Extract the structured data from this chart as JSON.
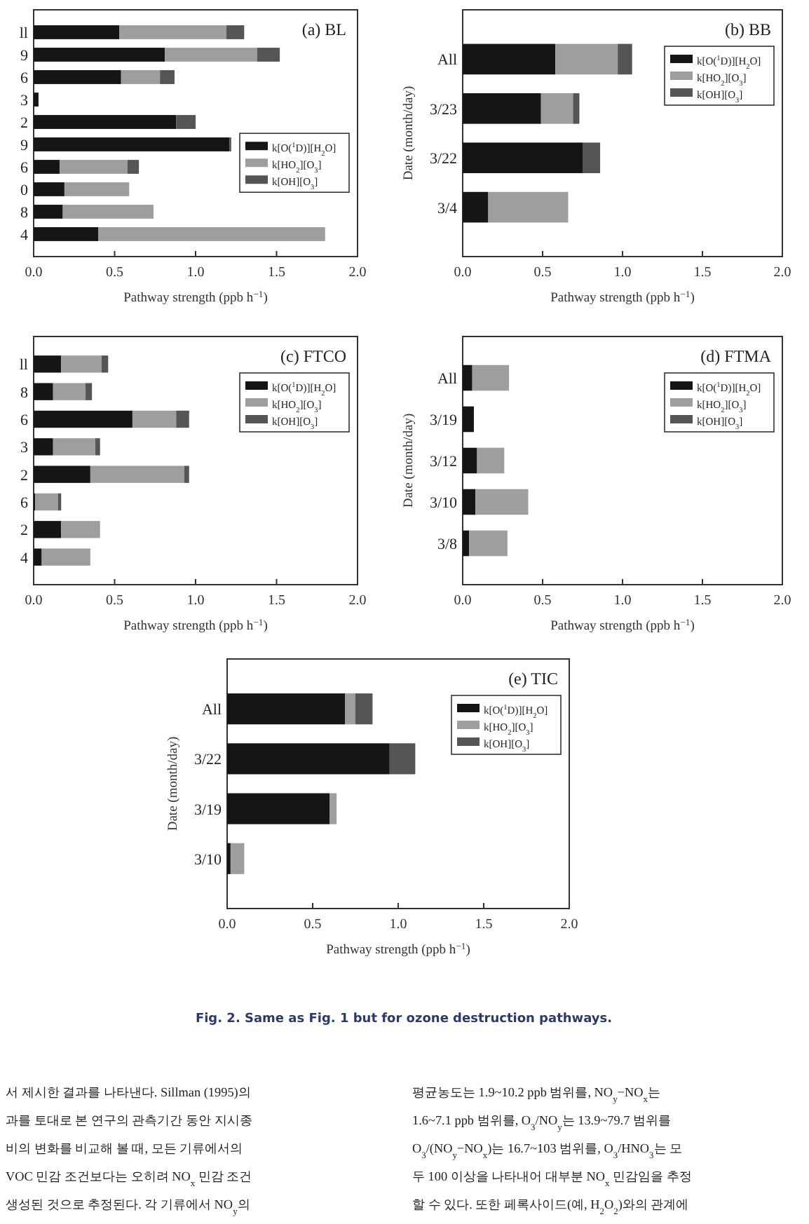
{
  "chart_data": [
    {
      "type": "bar",
      "orientation": "horizontal",
      "stacked": true,
      "title": "(a) BL",
      "xlabel": "Pathway strength (ppb h$^{−1}$)",
      "categories": [
        "ll",
        "9",
        "6",
        "3",
        "2",
        "9",
        "6",
        "0",
        "8",
        "4"
      ],
      "xlim": [
        0,
        2
      ],
      "xticks": [
        {
          "value": 0,
          "label": "0.0"
        },
        {
          "value": 0.5,
          "label": "0.5"
        },
        {
          "value": 1,
          "label": "1.0"
        },
        {
          "value": 1.5,
          "label": "1.5"
        },
        {
          "value": 2,
          "label": "2.0"
        }
      ],
      "legend": "right",
      "series": [
        {
          "name": "k[O($^{1}$D)][H$_{2}$O]",
          "color": "#151515",
          "values": [
            0.53,
            0.81,
            0.54,
            0.03,
            0.88,
            1.21,
            0.16,
            0.19,
            0.18,
            0.4
          ]
        },
        {
          "name": "k[HO$_{2}$][O$_{3}$]",
          "color": "#9e9e9e",
          "values": [
            0.66,
            0.57,
            0.24,
            0,
            0,
            0,
            0.42,
            0.4,
            0.56,
            1.4
          ]
        },
        {
          "name": "k[OH][O$_{3}$]",
          "color": "#555555",
          "values": [
            0.11,
            0.14,
            0.09,
            0,
            0.12,
            0.01,
            0.07,
            0,
            0,
            0
          ]
        }
      ]
    },
    {
      "type": "bar",
      "orientation": "horizontal",
      "stacked": true,
      "title": "(b) BB",
      "xlabel": "Pathway strength (ppb h$^{−1}$)",
      "ylabel": "Date (month/day)",
      "categories": [
        "All",
        "3/23",
        "3/22",
        "3/4"
      ],
      "xlim": [
        0,
        2
      ],
      "xticks": [
        {
          "value": 0,
          "label": "0.0"
        },
        {
          "value": 0.5,
          "label": "0.5"
        },
        {
          "value": 1,
          "label": "1.0"
        },
        {
          "value": 1.5,
          "label": "1.5"
        },
        {
          "value": 2,
          "label": "2.0"
        }
      ],
      "legend": "top right",
      "series": [
        {
          "name": "k[O($^{1}$D)][H$_{2}$O]",
          "color": "#151515",
          "values": [
            0.58,
            0.49,
            0.75,
            0.16
          ]
        },
        {
          "name": "k[HO$_{2}$][O$_{3}$]",
          "color": "#9e9e9e",
          "values": [
            0.39,
            0.2,
            0,
            0.5
          ]
        },
        {
          "name": "k[OH][O$_{3}$]",
          "color": "#555555",
          "values": [
            0.09,
            0.04,
            0.11,
            0
          ]
        }
      ]
    },
    {
      "type": "bar",
      "orientation": "horizontal",
      "stacked": true,
      "title": "(c) FTCO",
      "xlabel": "Pathway strength (ppb h$^{−1}$)",
      "categories": [
        "ll",
        "8",
        "6",
        "3",
        "2",
        "6",
        "2",
        "4"
      ],
      "xlim": [
        0,
        2
      ],
      "xticks": [
        {
          "value": 0,
          "label": "0.0"
        },
        {
          "value": 0.5,
          "label": "0.5"
        },
        {
          "value": 1,
          "label": "1.0"
        },
        {
          "value": 1.5,
          "label": "1.5"
        },
        {
          "value": 2,
          "label": "2.0"
        }
      ],
      "legend": "top right",
      "series": [
        {
          "name": "k[O($^{1}$D)][H$_{2}$O]",
          "color": "#151515",
          "values": [
            0.17,
            0.12,
            0.61,
            0.12,
            0.35,
            0.01,
            0.17,
            0.05
          ]
        },
        {
          "name": "k[HO$_{2}$][O$_{3}$]",
          "color": "#9e9e9e",
          "values": [
            0.25,
            0.2,
            0.27,
            0.26,
            0.58,
            0.14,
            0.24,
            0.3
          ]
        },
        {
          "name": "k[OH][O$_{3}$]",
          "color": "#555555",
          "values": [
            0.04,
            0.04,
            0.08,
            0.03,
            0.03,
            0.02,
            0,
            0
          ]
        }
      ]
    },
    {
      "type": "bar",
      "orientation": "horizontal",
      "stacked": true,
      "title": "(d) FTMA",
      "xlabel": "Pathway strength (ppb h$^{−1}$)",
      "ylabel": "Date (month/day)",
      "categories": [
        "All",
        "3/19",
        "3/12",
        "3/10",
        "3/8"
      ],
      "xlim": [
        0,
        2
      ],
      "xticks": [
        {
          "value": 0,
          "label": "0.0"
        },
        {
          "value": 0.5,
          "label": "0.5"
        },
        {
          "value": 1,
          "label": "1.0"
        },
        {
          "value": 1.5,
          "label": "1.5"
        },
        {
          "value": 2,
          "label": "2.0"
        }
      ],
      "legend": "top right",
      "series": [
        {
          "name": "k[O($^{1}$D)][H$_{2}$O]",
          "color": "#151515",
          "values": [
            0.06,
            0.07,
            0.09,
            0.08,
            0.04
          ]
        },
        {
          "name": "k[HO$_{2}$][O$_{3}$]",
          "color": "#9e9e9e",
          "values": [
            0.23,
            0,
            0.17,
            0.33,
            0.24
          ]
        },
        {
          "name": "k[OH][O$_{3}$]",
          "color": "#555555",
          "values": [
            0,
            0,
            0,
            0,
            0
          ]
        }
      ]
    },
    {
      "type": "bar",
      "orientation": "horizontal",
      "stacked": true,
      "title": "(e) TIC",
      "xlabel": "Pathway strength (ppb h$^{−1}$)",
      "ylabel": "Date (month/day)",
      "categories": [
        "All",
        "3/22",
        "3/19",
        "3/10"
      ],
      "xlim": [
        0,
        2
      ],
      "xticks": [
        {
          "value": 0,
          "label": "0.0"
        },
        {
          "value": 0.5,
          "label": "0.5"
        },
        {
          "value": 1,
          "label": "1.0"
        },
        {
          "value": 1.5,
          "label": "1.5"
        },
        {
          "value": 2,
          "label": "2.0"
        }
      ],
      "legend": "top right",
      "series": [
        {
          "name": "k[O($^{1}$D)][H$_{2}$O]",
          "color": "#151515",
          "values": [
            0.69,
            0.95,
            0.6,
            0.02
          ]
        },
        {
          "name": "k[HO$_{2}$][O$_{3}$]",
          "color": "#9e9e9e",
          "values": [
            0.06,
            0,
            0.04,
            0.08
          ]
        },
        {
          "name": "k[OH][O$_{3}$]",
          "color": "#555555",
          "values": [
            0.1,
            0.15,
            0,
            0
          ]
        }
      ]
    },
    {
      "type": "other",
      "annotations": [
        "Fig. 2. Same as Fig. 1 but for ozone destruction pathways.",
        "서 제시한 결과를 나타낸다. Sillman (1995)의",
        "과를 토대로 본 연구의 관측기간 동안 지시종",
        "비의 변화를 비교해 볼 때, 모든 기류에서의",
        "VOC 민감 조건보다는 오히려 NO$_{x}$ 민감 조건",
        "생성된 것으로 추정된다. 각 기류에서 NO$_{y}$의",
        "평균농도는 1.9~10.2 ppb 범위를, NO$_{y}$−NO$_{x}$는",
        "1.6~7.1 ppb 범위를, O$_{3}$/NO$_{y}$는 13.9~79.7 범위를",
        "O$_{3}$/(NO$_{y}$−NO$_{x}$)는 16.7~103 범위를, O$_{3}$/HNO$_{3}$는 모",
        "두 100 이상을 나타내어 대부분 NO$_{x}$ 민감임을 추정",
        "할 수 있다. 또한 페록사이드(예, H$_{2}$O$_{2}$)와의 관계에"
      ]
    }
  ]
}
